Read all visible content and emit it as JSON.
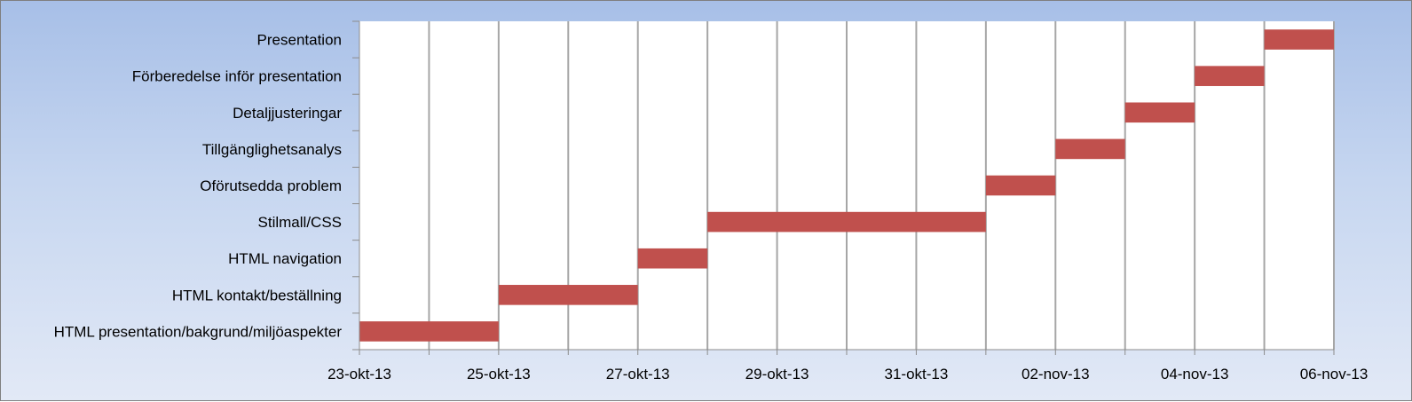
{
  "chart_data": {
    "type": "bar",
    "orientation": "horizontal",
    "title": "",
    "xlabel": "",
    "ylabel": "",
    "xlim": [
      "2013-10-23",
      "2013-11-06"
    ],
    "x_tick_labels": [
      "23-okt-13",
      "25-okt-13",
      "27-okt-13",
      "29-okt-13",
      "31-okt-13",
      "02-nov-13",
      "04-nov-13",
      "06-nov-13"
    ],
    "grid": true,
    "tasks": [
      {
        "name": "HTML presentation/bakgrund/miljöaspekter",
        "start": "2013-10-23",
        "end": "2013-10-25"
      },
      {
        "name": "HTML kontakt/beställning",
        "start": "2013-10-25",
        "end": "2013-10-27"
      },
      {
        "name": "HTML navigation",
        "start": "2013-10-27",
        "end": "2013-10-28"
      },
      {
        "name": "Stilmall/CSS",
        "start": "2013-10-28",
        "end": "2013-11-01"
      },
      {
        "name": "Oförutsedda problem",
        "start": "2013-11-01",
        "end": "2013-11-02"
      },
      {
        "name": "Tillgänglighetsanalys",
        "start": "2013-11-02",
        "end": "2013-11-03"
      },
      {
        "name": "Detaljjusteringar",
        "start": "2013-11-03",
        "end": "2013-11-04"
      },
      {
        "name": "Förberedelse inför presentation",
        "start": "2013-11-04",
        "end": "2013-11-05"
      },
      {
        "name": "Presentation",
        "start": "2013-11-05",
        "end": "2013-11-06"
      }
    ],
    "bar_color": "#c0504d",
    "gridline_color": "#a6a6a6",
    "plot_background": "#ffffff"
  }
}
